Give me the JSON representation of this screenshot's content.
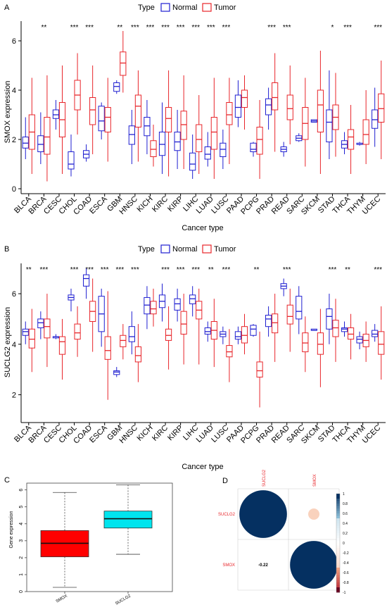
{
  "figure": {
    "panels": [
      {
        "letter": "A"
      },
      {
        "letter": "B"
      },
      {
        "letter": "C"
      },
      {
        "letter": "D"
      }
    ]
  },
  "chart_data": [
    {
      "panel": "A",
      "type": "box",
      "legend": {
        "title": "Type",
        "items": [
          {
            "name": "Normal",
            "color": "#1f1fd1"
          },
          {
            "name": "Tumor",
            "color": "#e8252a"
          }
        ],
        "position": "top"
      },
      "xlabel": "Cancer type",
      "ylabel": "SMOX expression",
      "ylim": [
        -0.2,
        6.8
      ],
      "yticks": [
        0,
        2,
        4,
        6
      ],
      "categories": [
        "BLCA",
        "BRCA",
        "CESC",
        "CHOL",
        "COAD",
        "ESCA",
        "GBM",
        "HNSC",
        "KICH",
        "KIRC",
        "KIRP",
        "LIHC",
        "LUAD",
        "LUSC",
        "PAAD",
        "PCPG",
        "PRAD",
        "READ",
        "SARC",
        "SKCM",
        "STAD",
        "THCA",
        "THYM",
        "UCEC"
      ],
      "significance": [
        "",
        "**",
        "",
        "***",
        "***",
        "",
        "**",
        "***",
        "***",
        "***",
        "***",
        "***",
        "***",
        "***",
        "",
        "",
        "***",
        "***",
        "",
        "",
        "*",
        "***",
        "",
        "***"
      ],
      "series": [
        {
          "name": "Normal",
          "color": "#1f1fd1",
          "boxes": [
            [
              1.2,
              1.65,
              1.85,
              2.1,
              2.9
            ],
            [
              1.0,
              1.5,
              1.8,
              2.15,
              3.1
            ],
            [
              2.4,
              2.85,
              3.0,
              3.2,
              3.6
            ],
            [
              0.5,
              0.8,
              1.0,
              1.5,
              2.2
            ],
            [
              1.1,
              1.25,
              1.4,
              1.55,
              1.8
            ],
            [
              2.0,
              2.35,
              2.75,
              3.35,
              3.5
            ],
            [
              3.85,
              3.95,
              4.15,
              4.3,
              4.4
            ],
            [
              1.0,
              1.8,
              2.2,
              2.55,
              3.2
            ],
            [
              1.4,
              2.15,
              2.55,
              2.9,
              3.6
            ],
            [
              0.6,
              1.35,
              1.8,
              2.3,
              3.5
            ],
            [
              0.8,
              1.55,
              1.9,
              2.3,
              3.2
            ],
            [
              0.4,
              0.75,
              1.0,
              1.45,
              2.2
            ],
            [
              0.9,
              1.2,
              1.4,
              1.7,
              2.3
            ],
            [
              0.8,
              1.3,
              1.6,
              1.85,
              2.4
            ],
            [
              2.5,
              2.9,
              3.3,
              3.8,
              4.4
            ],
            [
              1.3,
              1.5,
              1.6,
              1.85,
              1.9
            ],
            [
              2.4,
              3.0,
              3.4,
              3.65,
              4.1
            ],
            [
              1.3,
              1.5,
              1.6,
              1.7,
              1.9
            ],
            [
              1.9,
              1.95,
              2.05,
              2.15,
              2.25
            ],
            [
              2.7,
              2.7,
              2.75,
              2.8,
              2.8
            ],
            [
              1.2,
              1.9,
              2.7,
              3.2,
              4.8
            ],
            [
              1.4,
              1.65,
              1.8,
              1.95,
              2.3
            ],
            [
              1.75,
              1.8,
              1.8,
              1.85,
              1.9
            ],
            [
              1.7,
              2.45,
              2.8,
              3.2,
              4.1
            ]
          ]
        },
        {
          "name": "Tumor",
          "color": "#e8252a",
          "boxes": [
            [
              0.6,
              1.6,
              2.3,
              3.0,
              4.5
            ],
            [
              0.3,
              1.4,
              2.1,
              2.9,
              4.6
            ],
            [
              0.6,
              2.1,
              2.8,
              3.5,
              5.0
            ],
            [
              2.2,
              3.2,
              3.8,
              4.4,
              5.5
            ],
            [
              1.4,
              2.6,
              3.2,
              3.7,
              5.0
            ],
            [
              1.1,
              2.3,
              2.9,
              3.3,
              4.5
            ],
            [
              3.9,
              4.6,
              5.1,
              5.55,
              6.4
            ],
            [
              1.1,
              2.5,
              3.35,
              3.8,
              4.8
            ],
            [
              0.9,
              1.3,
              1.6,
              1.95,
              2.6
            ],
            [
              0.5,
              2.3,
              2.85,
              3.3,
              4.8
            ],
            [
              0.8,
              2.0,
              2.6,
              3.15,
              4.6
            ],
            [
              0.6,
              1.5,
              2.0,
              2.6,
              3.8
            ],
            [
              0.4,
              1.6,
              2.3,
              2.9,
              4.5
            ],
            [
              1.0,
              2.6,
              3.0,
              3.5,
              4.5
            ],
            [
              2.4,
              3.3,
              3.7,
              4.0,
              4.6
            ],
            [
              0.4,
              1.4,
              2.0,
              2.5,
              3.6
            ],
            [
              1.5,
              3.2,
              3.7,
              4.3,
              5.5
            ],
            [
              1.8,
              2.8,
              3.25,
              3.8,
              5.0
            ],
            [
              0.9,
              2.0,
              2.65,
              3.3,
              4.5
            ],
            [
              0.6,
              2.3,
              3.4,
              4.0,
              5.6
            ],
            [
              1.3,
              2.4,
              2.9,
              3.4,
              4.7
            ],
            [
              0.6,
              1.6,
              2.1,
              2.4,
              3.4
            ],
            [
              1.0,
              1.8,
              2.2,
              2.8,
              4.0
            ],
            [
              1.2,
              2.7,
              3.25,
              3.85,
              5.2
            ]
          ]
        }
      ]
    },
    {
      "panel": "B",
      "type": "box",
      "legend": {
        "title": "Type",
        "items": [
          {
            "name": "Normal",
            "color": "#1f1fd1"
          },
          {
            "name": "Tumor",
            "color": "#e8252a"
          }
        ],
        "position": "top"
      },
      "xlabel": "Cancer type",
      "ylabel": "SUCLG2 expression",
      "ylim": [
        0.9,
        7.2
      ],
      "yticks": [
        2,
        4,
        6
      ],
      "categories": [
        "BLCA",
        "BRCA",
        "CESC",
        "CHOL",
        "COAD",
        "ESCA",
        "GBM",
        "HNSC",
        "KICH",
        "KIRC",
        "KIRP",
        "LIHC",
        "LUAD",
        "LUSC",
        "PAAD",
        "PCPG",
        "PRAD",
        "READ",
        "SARC",
        "SKCM",
        "STAD",
        "THCA",
        "THYM",
        "UCEC"
      ],
      "significance": [
        "**",
        "***",
        "",
        "***",
        "***",
        "***",
        "***",
        "***",
        "",
        "***",
        "***",
        "***",
        "**",
        "***",
        "",
        "**",
        "",
        "***",
        "",
        "",
        "***",
        "**",
        "",
        "***"
      ],
      "series": [
        {
          "name": "Normal",
          "color": "#1f1fd1",
          "boxes": [
            [
              4.0,
              4.35,
              4.5,
              4.6,
              4.9
            ],
            [
              4.2,
              4.65,
              4.85,
              5.0,
              5.3
            ],
            [
              4.2,
              4.25,
              4.3,
              4.3,
              4.4
            ],
            [
              5.3,
              5.75,
              5.85,
              5.95,
              6.2
            ],
            [
              5.8,
              6.3,
              6.6,
              6.75,
              7.0
            ],
            [
              3.9,
              4.5,
              5.2,
              5.9,
              6.2
            ],
            [
              2.7,
              2.8,
              2.9,
              2.95,
              3.1
            ],
            [
              3.6,
              4.1,
              4.3,
              4.7,
              5.3
            ],
            [
              4.6,
              5.2,
              5.55,
              5.85,
              6.3
            ],
            [
              4.9,
              5.45,
              5.7,
              5.95,
              6.4
            ],
            [
              4.9,
              5.35,
              5.6,
              5.8,
              6.2
            ],
            [
              5.1,
              5.6,
              5.8,
              5.95,
              6.3
            ],
            [
              4.1,
              4.4,
              4.5,
              4.65,
              4.9
            ],
            [
              4.0,
              4.3,
              4.4,
              4.5,
              4.7
            ],
            [
              4.0,
              4.2,
              4.3,
              4.5,
              4.7
            ],
            [
              4.3,
              4.35,
              4.6,
              4.75,
              4.8
            ],
            [
              4.3,
              4.7,
              5.0,
              5.15,
              5.5
            ],
            [
              5.9,
              6.2,
              6.3,
              6.4,
              6.6
            ],
            [
              4.4,
              5.0,
              5.3,
              5.9,
              6.3
            ],
            [
              4.55,
              4.55,
              4.55,
              4.6,
              4.6
            ],
            [
              4.0,
              4.6,
              5.1,
              5.4,
              6.0
            ],
            [
              4.3,
              4.5,
              4.6,
              4.65,
              4.9
            ],
            [
              3.8,
              4.05,
              4.2,
              4.3,
              4.5
            ],
            [
              4.1,
              4.3,
              4.4,
              4.55,
              4.8
            ]
          ]
        },
        {
          "name": "Tumor",
          "color": "#e8252a",
          "boxes": [
            [
              2.9,
              3.85,
              4.2,
              4.6,
              5.4
            ],
            [
              3.1,
              4.25,
              4.7,
              5.0,
              6.0
            ],
            [
              2.6,
              3.6,
              4.1,
              4.3,
              5.0
            ],
            [
              3.5,
              4.2,
              4.45,
              4.8,
              5.5
            ],
            [
              3.7,
              4.9,
              5.3,
              5.7,
              6.6
            ],
            [
              1.8,
              3.4,
              3.75,
              4.3,
              6.1
            ],
            [
              3.4,
              3.9,
              4.15,
              4.35,
              4.8
            ],
            [
              2.5,
              3.3,
              3.55,
              3.9,
              4.8
            ],
            [
              4.7,
              5.2,
              5.4,
              5.7,
              6.2
            ],
            [
              3.0,
              4.15,
              4.35,
              4.6,
              5.5
            ],
            [
              3.2,
              4.4,
              4.8,
              5.3,
              6.0
            ],
            [
              3.2,
              5.0,
              5.35,
              5.7,
              6.2
            ],
            [
              3.1,
              4.2,
              4.55,
              4.9,
              5.8
            ],
            [
              2.5,
              3.5,
              3.7,
              3.95,
              4.6
            ],
            [
              3.6,
              4.05,
              4.35,
              4.7,
              5.2
            ],
            [
              1.5,
              2.7,
              2.95,
              3.3,
              4.5
            ],
            [
              3.3,
              4.45,
              4.85,
              5.2,
              6.0
            ],
            [
              3.7,
              4.8,
              5.1,
              5.55,
              6.2
            ],
            [
              2.9,
              3.7,
              4.05,
              4.45,
              5.1
            ],
            [
              2.3,
              3.6,
              4.0,
              4.45,
              5.4
            ],
            [
              3.3,
              4.3,
              4.65,
              4.95,
              5.8
            ],
            [
              3.4,
              4.2,
              4.4,
              4.65,
              5.2
            ],
            [
              3.3,
              3.9,
              4.15,
              4.4,
              4.9
            ],
            [
              2.6,
              3.6,
              4.0,
              4.5,
              5.5
            ]
          ]
        }
      ]
    },
    {
      "panel": "C",
      "type": "box",
      "ylabel": "Gene expression",
      "ylim": [
        0,
        6.4
      ],
      "yticks": [
        0,
        1,
        2,
        3,
        4,
        5,
        6
      ],
      "categories": [
        "SMOX",
        "SUCLG2"
      ],
      "series": [
        {
          "name": "",
          "boxes": [
            [
              0.25,
              2.05,
              2.85,
              3.6,
              5.85
            ],
            [
              2.2,
              3.75,
              4.3,
              4.75,
              6.3
            ]
          ],
          "colors": [
            "#ff0000",
            "#00e5ee"
          ]
        }
      ]
    },
    {
      "panel": "D",
      "type": "heatmap",
      "variables": [
        "SUCLG2",
        "SMOX"
      ],
      "matrix": [
        [
          1,
          -0.22
        ],
        [
          -0.22,
          1
        ]
      ],
      "lower_label": "-0.22",
      "colorbar": {
        "min": -1,
        "max": 1,
        "ticks": [
          "1",
          "0.8",
          "0.6",
          "0.4",
          "0.2",
          "0",
          "-0.2",
          "-0.4",
          "-0.6",
          "-0.8",
          "-1"
        ],
        "high_color": "#053061",
        "mid_color": "#ffffff",
        "low_color": "#67001f"
      }
    }
  ]
}
